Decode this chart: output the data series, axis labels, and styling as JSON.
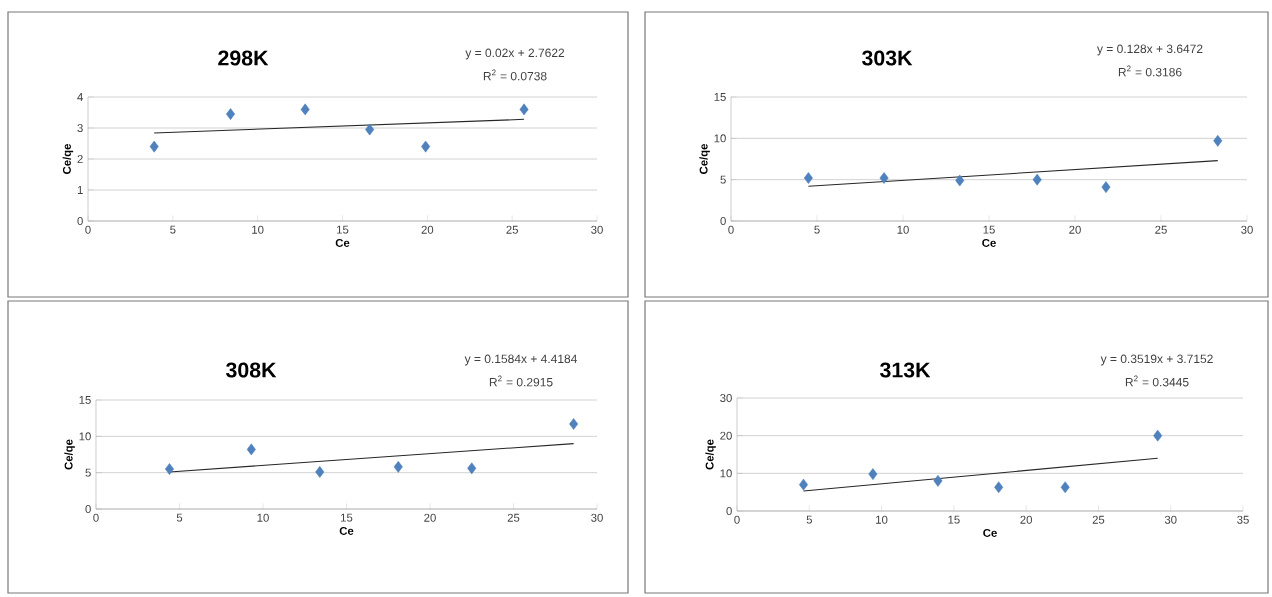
{
  "chart_data": [
    {
      "type": "scatter",
      "title": "298K",
      "xlabel": "Ce",
      "ylabel": "Ce/qe",
      "xlim": [
        0,
        30
      ],
      "ylim": [
        0,
        4
      ],
      "xticks": [
        0,
        5,
        10,
        15,
        20,
        25,
        30
      ],
      "yticks": [
        0,
        1,
        2,
        3,
        4
      ],
      "grid": "y",
      "annotations": [
        "y = 0.02x + 2.7622",
        "R$^{2}$ = 0.0738"
      ],
      "series": [
        {
          "marker": "diamond",
          "color": "#4f81bd",
          "x": [
            3.9,
            8.4,
            12.8,
            16.6,
            19.9,
            25.7
          ],
          "values": [
            2.4,
            3.45,
            3.6,
            2.95,
            2.4,
            3.6
          ]
        },
        {
          "type": "line",
          "marker": "none",
          "line_style": "solid",
          "color": "#262626",
          "x": [
            3.9,
            25.7
          ],
          "values": [
            2.84,
            3.28
          ]
        }
      ]
    },
    {
      "type": "scatter",
      "title": "303K",
      "xlabel": "Ce",
      "ylabel": "Ce/qe",
      "xlim": [
        0,
        30
      ],
      "ylim": [
        0,
        15
      ],
      "xticks": [
        0,
        5,
        10,
        15,
        20,
        25,
        30
      ],
      "yticks": [
        0,
        5,
        10,
        15
      ],
      "grid": "y",
      "annotations": [
        "y = 0.128x + 3.6472",
        "R$^{2}$ = 0.3186"
      ],
      "series": [
        {
          "marker": "diamond",
          "color": "#4f81bd",
          "x": [
            4.5,
            8.9,
            13.3,
            17.8,
            21.8,
            28.3
          ],
          "values": [
            5.2,
            5.2,
            4.9,
            5.0,
            4.1,
            9.7
          ]
        },
        {
          "type": "line",
          "marker": "none",
          "line_style": "solid",
          "color": "#262626",
          "x": [
            4.5,
            28.3
          ],
          "values": [
            4.2,
            7.3
          ]
        }
      ]
    },
    {
      "type": "scatter",
      "title": "308K",
      "xlabel": "Ce",
      "ylabel": "Ce/qe",
      "xlim": [
        0,
        30
      ],
      "ylim": [
        0,
        15
      ],
      "xticks": [
        0,
        5,
        10,
        15,
        20,
        25,
        30
      ],
      "yticks": [
        0,
        5,
        10,
        15
      ],
      "grid": "y",
      "annotations": [
        "y = 0.1584x + 4.4184",
        "R$^{2}$ = 0.2915"
      ],
      "series": [
        {
          "marker": "diamond",
          "color": "#4f81bd",
          "x": [
            4.4,
            9.3,
            13.4,
            18.1,
            22.5,
            28.6
          ],
          "values": [
            5.5,
            8.2,
            5.1,
            5.8,
            5.6,
            11.7
          ]
        },
        {
          "type": "line",
          "marker": "none",
          "line_style": "solid",
          "color": "#262626",
          "x": [
            4.4,
            28.6
          ],
          "values": [
            5.1,
            9.0
          ]
        }
      ]
    },
    {
      "type": "scatter",
      "title": "313K",
      "xlabel": "Ce",
      "ylabel": "Ce/qe",
      "xlim": [
        0,
        35
      ],
      "ylim": [
        0,
        30
      ],
      "xticks": [
        0,
        5,
        10,
        15,
        20,
        25,
        30,
        35
      ],
      "yticks": [
        0,
        10,
        20,
        30
      ],
      "grid": "y",
      "annotations": [
        "y = 0.3519x + 3.7152",
        "R$^{2}$ = 0.3445"
      ],
      "series": [
        {
          "marker": "diamond",
          "color": "#4f81bd",
          "x": [
            4.6,
            9.4,
            13.9,
            18.1,
            22.7,
            29.1
          ],
          "values": [
            7.0,
            9.8,
            8.0,
            6.3,
            6.3,
            20.0
          ]
        },
        {
          "type": "line",
          "marker": "none",
          "line_style": "solid",
          "color": "#262626",
          "x": [
            4.6,
            29.1
          ],
          "values": [
            5.3,
            14.0
          ]
        }
      ]
    }
  ]
}
